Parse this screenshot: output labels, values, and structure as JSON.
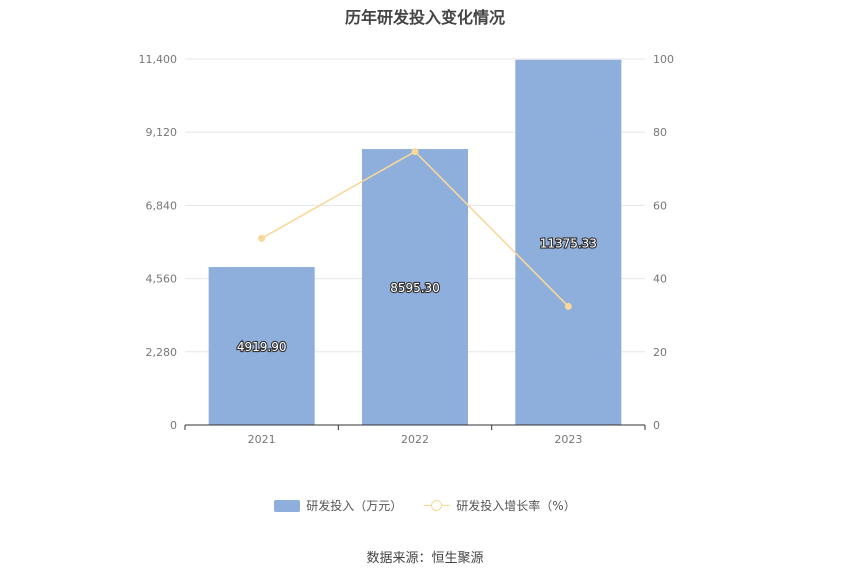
{
  "chart_data": {
    "type": "bar",
    "title": "历年研发投入变化情况",
    "categories": [
      "2021",
      "2022",
      "2023"
    ],
    "series": [
      {
        "name": "研发投入（万元）",
        "type": "bar",
        "axis": "left",
        "values": [
          4919.9,
          8595.3,
          11375.33
        ],
        "labels": [
          "4919.90",
          "8595.30",
          "11375.33"
        ]
      },
      {
        "name": "研发投入增长率（%）",
        "type": "line",
        "axis": "right",
        "values": [
          51,
          74.7,
          32.4
        ]
      }
    ],
    "y_left": {
      "min": 0,
      "max": 11400,
      "ticks": [
        "0",
        "2,280",
        "4,560",
        "6,840",
        "9,120",
        "11,400"
      ]
    },
    "y_right": {
      "min": 0,
      "max": 100,
      "ticks": [
        "0",
        "20",
        "40",
        "60",
        "80",
        "100"
      ]
    },
    "grid": true,
    "legend_position": "bottom"
  },
  "colors": {
    "bar": "#8eaedb",
    "line": "#f9d89a",
    "grid": "#e6e6e6",
    "axis": "#333333"
  },
  "source": "数据来源：恒生聚源"
}
